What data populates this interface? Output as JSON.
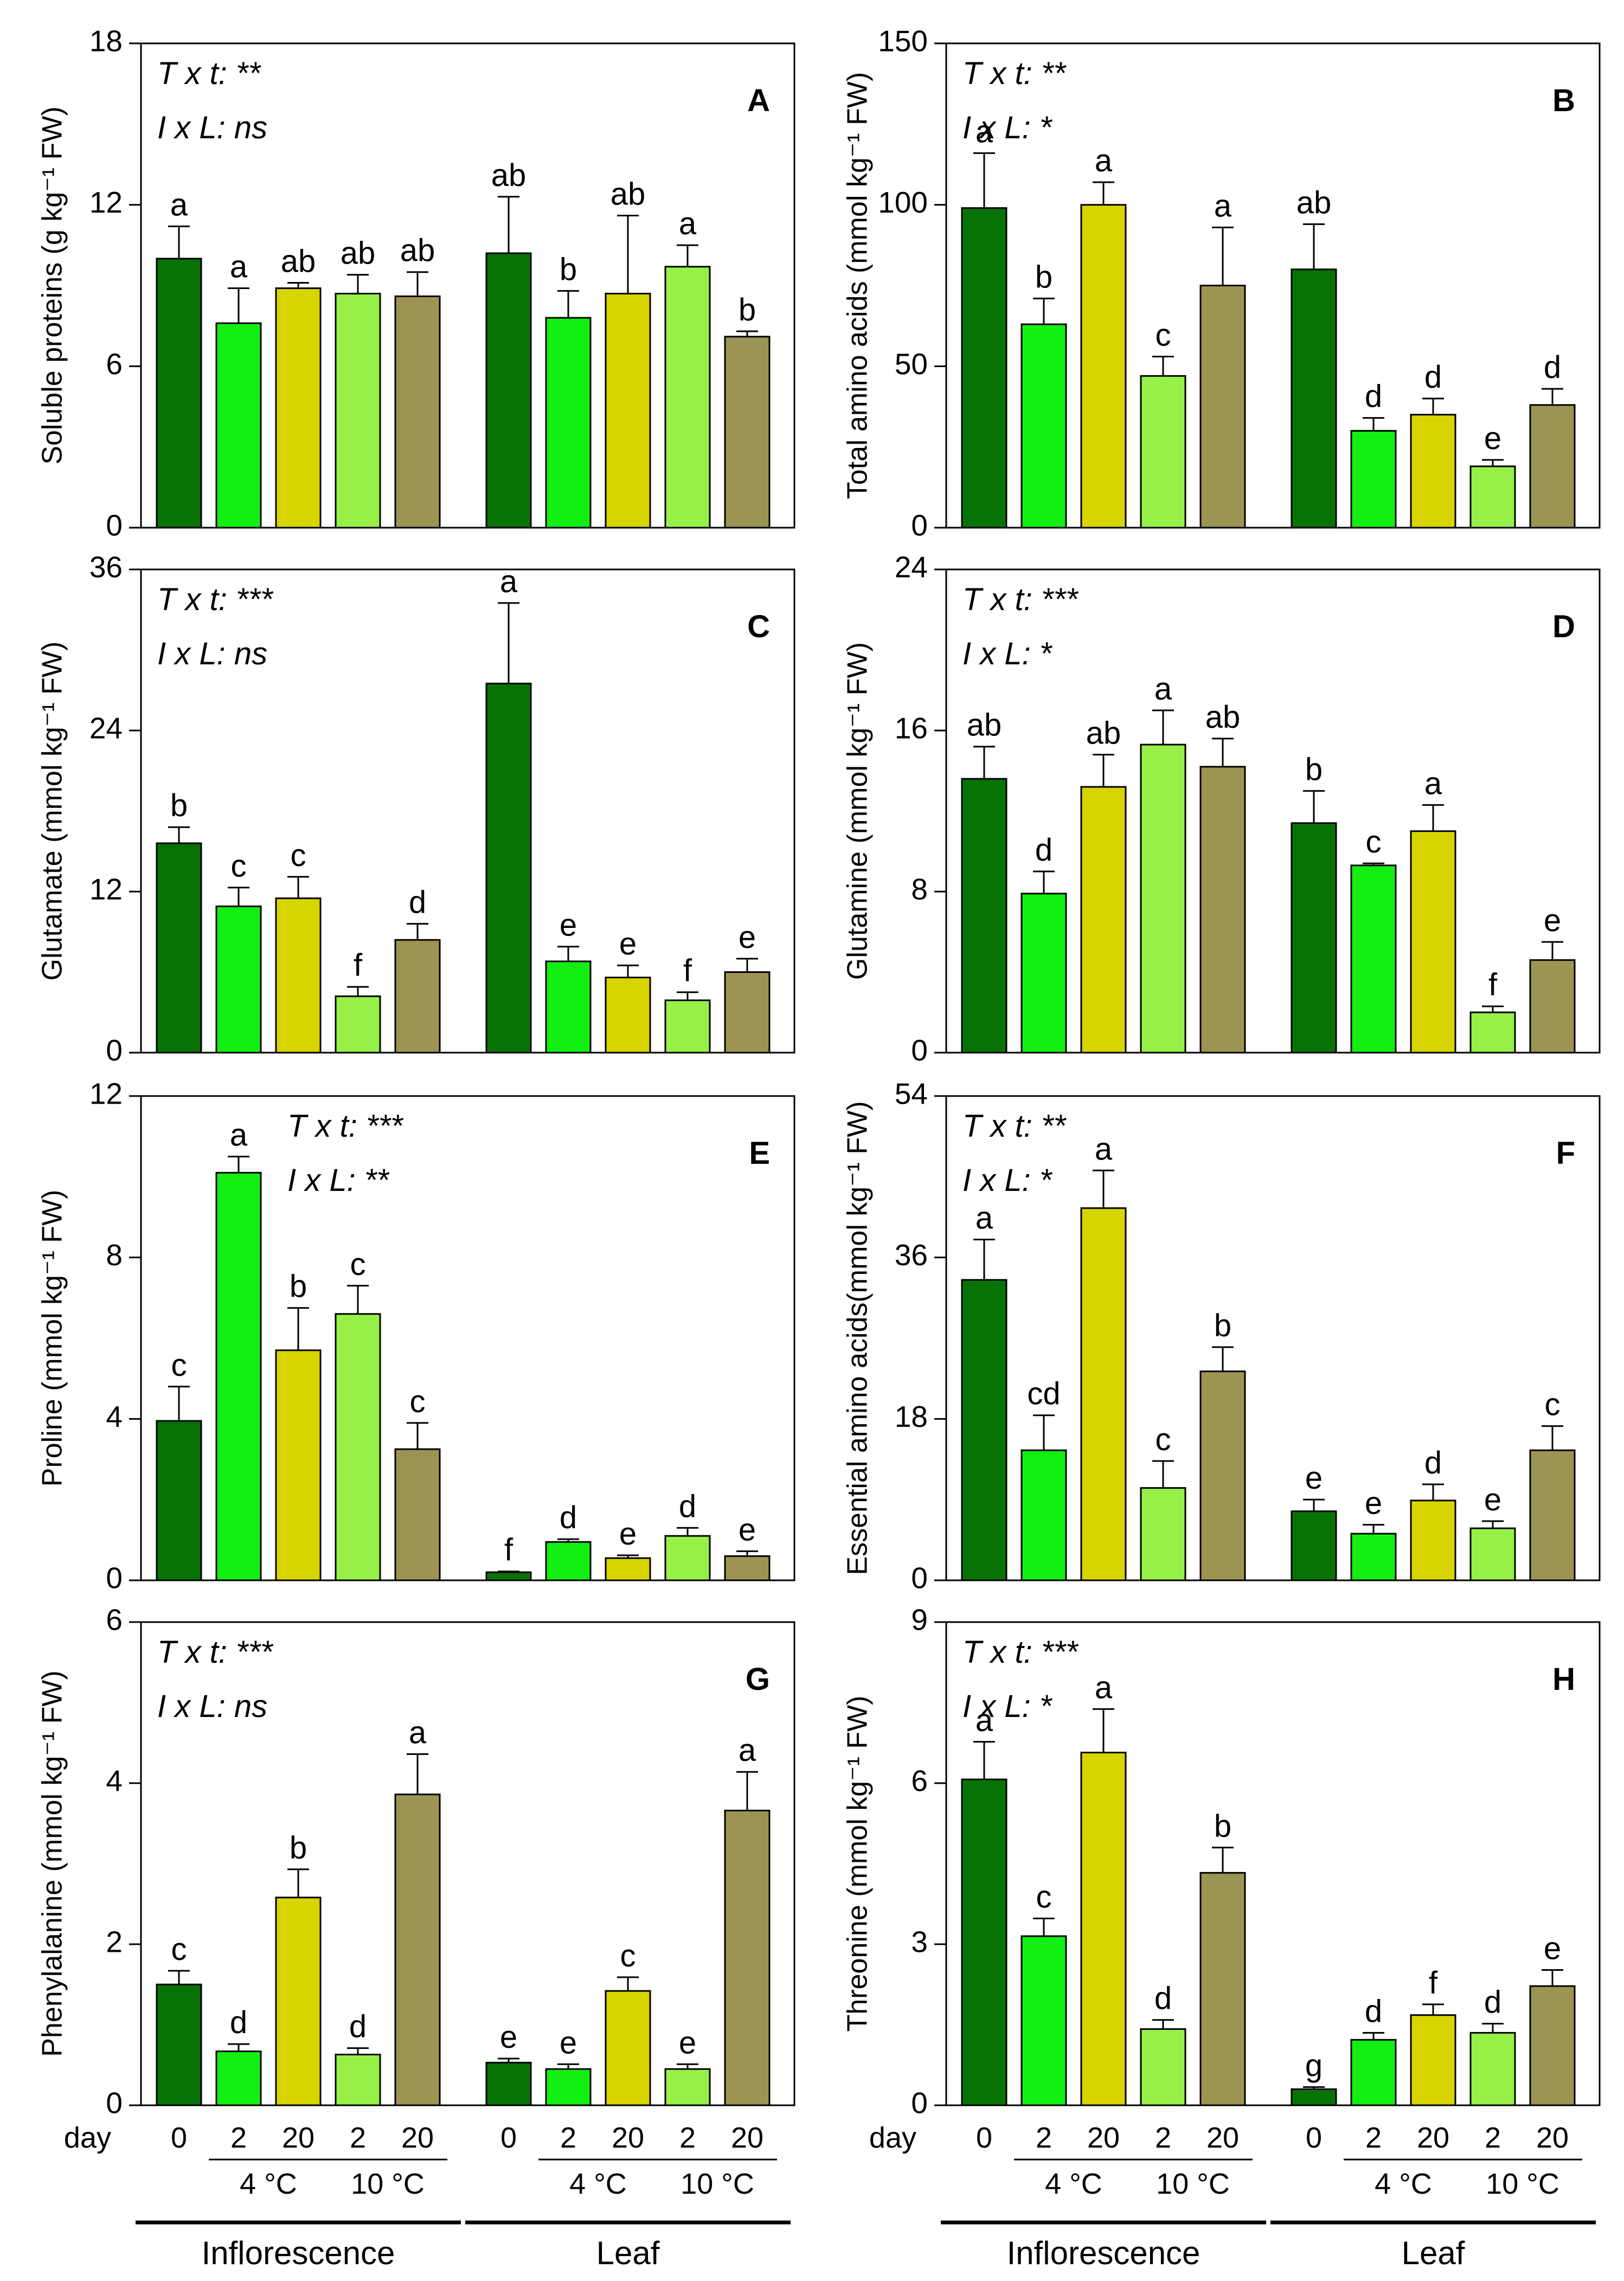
{
  "colors": [
    "#077307",
    "#13ee13",
    "#d8d400",
    "#96f048",
    "#9c9452"
  ],
  "x_axis": {
    "day_label": "day",
    "days": [
      "0",
      "2",
      "20",
      "2",
      "20"
    ],
    "temps": [
      "4 °C",
      "10 °C"
    ],
    "groups": [
      "Inflorescence",
      "Leaf"
    ]
  },
  "chart_data": [
    {
      "type": "bar",
      "panel": "A",
      "ylabel": "Soluble proteins (g kg⁻¹ FW)",
      "ylim": [
        0,
        18
      ],
      "yticks": [
        "0",
        "6",
        "12",
        "18"
      ],
      "stats": [
        "T x t: **",
        "I x L: ns"
      ],
      "groups": [
        {
          "name": "Inflorescence",
          "values": [
            10.0,
            7.6,
            8.9,
            8.7,
            8.6
          ],
          "errors": [
            1.2,
            1.3,
            0.2,
            0.7,
            0.9
          ],
          "letters": [
            "a",
            "a",
            "ab",
            "ab",
            "ab"
          ]
        },
        {
          "name": "Leaf",
          "values": [
            10.2,
            7.8,
            8.7,
            9.7,
            7.1
          ],
          "errors": [
            2.1,
            1.0,
            2.9,
            0.8,
            0.2
          ],
          "letters": [
            "ab",
            "b",
            "ab",
            "a",
            "b"
          ]
        }
      ]
    },
    {
      "type": "bar",
      "panel": "B",
      "ylabel": "Total amino acids (mmol kg⁻¹ FW)",
      "ylim": [
        0,
        150
      ],
      "yticks": [
        "0",
        "50",
        "100",
        "150"
      ],
      "stats": [
        "T x t: **",
        "I x L: *"
      ],
      "groups": [
        {
          "name": "Inflorescence",
          "values": [
            99,
            63,
            100,
            47,
            75
          ],
          "errors": [
            17,
            8,
            7,
            6,
            18
          ],
          "letters": [
            "a",
            "b",
            "a",
            "c",
            "a"
          ]
        },
        {
          "name": "Leaf",
          "values": [
            80,
            30,
            35,
            19,
            38
          ],
          "errors": [
            14,
            4,
            5,
            2,
            5
          ],
          "letters": [
            "ab",
            "d",
            "d",
            "e",
            "d"
          ]
        }
      ]
    },
    {
      "type": "bar",
      "panel": "C",
      "ylabel": "Glutamate (mmol kg⁻¹ FW)",
      "ylim": [
        0,
        36
      ],
      "yticks": [
        "0",
        "12",
        "24",
        "36"
      ],
      "stats": [
        "T x t: ***",
        "I x L: ns"
      ],
      "groups": [
        {
          "name": "Inflorescence",
          "values": [
            15.6,
            10.9,
            11.5,
            4.2,
            8.4
          ],
          "errors": [
            1.2,
            1.4,
            1.6,
            0.7,
            1.2
          ],
          "letters": [
            "b",
            "c",
            "c",
            "f",
            "d"
          ]
        },
        {
          "name": "Leaf",
          "values": [
            27.5,
            6.8,
            5.6,
            3.9,
            6.0
          ],
          "errors": [
            6.0,
            1.1,
            0.9,
            0.6,
            1.0
          ],
          "letters": [
            "a",
            "e",
            "e",
            "f",
            "e"
          ]
        }
      ]
    },
    {
      "type": "bar",
      "panel": "D",
      "ylabel": "Glutamine (mmol kg⁻¹ FW)",
      "ylim": [
        0,
        24
      ],
      "yticks": [
        "0",
        "8",
        "16",
        "24"
      ],
      "stats": [
        "T x t: ***",
        "I x L: *"
      ],
      "groups": [
        {
          "name": "Inflorescence",
          "values": [
            13.6,
            7.9,
            13.2,
            15.3,
            14.2
          ],
          "errors": [
            1.6,
            1.1,
            1.6,
            1.7,
            1.4
          ],
          "letters": [
            "ab",
            "d",
            "ab",
            "a",
            "ab"
          ]
        },
        {
          "name": "Leaf",
          "values": [
            11.4,
            9.3,
            11.0,
            2.0,
            4.6
          ],
          "errors": [
            1.6,
            0.1,
            1.3,
            0.3,
            0.9
          ],
          "letters": [
            "b",
            "c",
            "a",
            "f",
            "e"
          ]
        }
      ]
    },
    {
      "type": "bar",
      "panel": "E",
      "ylabel": "Proline (mmol kg⁻¹ FW)",
      "ylim": [
        0,
        12
      ],
      "yticks": [
        "0",
        "4",
        "8",
        "12"
      ],
      "stats": [
        "T x t: ***",
        "I x L: **"
      ],
      "groups": [
        {
          "name": "Inflorescence",
          "values": [
            3.95,
            10.1,
            5.7,
            6.6,
            3.25
          ],
          "errors": [
            0.85,
            0.4,
            1.05,
            0.7,
            0.65
          ],
          "letters": [
            "c",
            "a",
            "b",
            "c",
            "c"
          ]
        },
        {
          "name": "Leaf",
          "values": [
            0.2,
            0.95,
            0.55,
            1.1,
            0.6
          ],
          "errors": [
            0.02,
            0.07,
            0.07,
            0.2,
            0.12
          ],
          "letters": [
            "f",
            "d",
            "e",
            "d",
            "e"
          ]
        }
      ]
    },
    {
      "type": "bar",
      "panel": "F",
      "ylabel": "Essential amino acids(mmol kg⁻¹ FW)",
      "ylim": [
        0,
        54
      ],
      "yticks": [
        "0",
        "18",
        "36",
        "54"
      ],
      "stats": [
        "T x t: **",
        "I x L: *"
      ],
      "groups": [
        {
          "name": "Inflorescence",
          "values": [
            33.5,
            14.5,
            41.5,
            10.3,
            23.3
          ],
          "errors": [
            4.5,
            3.9,
            4.2,
            3.0,
            2.7
          ],
          "letters": [
            "a",
            "cd",
            "a",
            "c",
            "b"
          ]
        },
        {
          "name": "Leaf",
          "values": [
            7.7,
            5.2,
            8.9,
            5.8,
            14.5
          ],
          "errors": [
            1.3,
            1.0,
            1.8,
            0.8,
            2.7
          ],
          "letters": [
            "e",
            "e",
            "d",
            "e",
            "c"
          ]
        }
      ]
    },
    {
      "type": "bar",
      "panel": "G",
      "ylabel": "Phenylalanine (mmol kg⁻¹ FW)",
      "ylim": [
        0,
        6
      ],
      "yticks": [
        "0",
        "2",
        "4",
        "6"
      ],
      "stats": [
        "T x t: ***",
        "I x L: ns"
      ],
      "groups": [
        {
          "name": "Inflorescence",
          "values": [
            1.5,
            0.67,
            2.58,
            0.63,
            3.86
          ],
          "errors": [
            0.17,
            0.09,
            0.35,
            0.08,
            0.5
          ],
          "letters": [
            "c",
            "d",
            "b",
            "d",
            "a"
          ]
        },
        {
          "name": "Leaf",
          "values": [
            0.53,
            0.45,
            1.42,
            0.45,
            3.66
          ],
          "errors": [
            0.05,
            0.06,
            0.17,
            0.06,
            0.48
          ],
          "letters": [
            "e",
            "e",
            "c",
            "e",
            "a"
          ]
        }
      ]
    },
    {
      "type": "bar",
      "panel": "H",
      "ylabel": "Threonine (mmol kg⁻¹ FW)",
      "ylim": [
        0,
        9
      ],
      "yticks": [
        "0",
        "3",
        "6",
        "9"
      ],
      "stats": [
        "T x t: ***",
        "I x L: *"
      ],
      "groups": [
        {
          "name": "Inflorescence",
          "values": [
            6.07,
            3.15,
            6.57,
            1.42,
            4.33
          ],
          "errors": [
            0.7,
            0.33,
            0.81,
            0.17,
            0.47
          ],
          "letters": [
            "a",
            "c",
            "a",
            "d",
            "b"
          ]
        },
        {
          "name": "Leaf",
          "values": [
            0.3,
            1.22,
            1.68,
            1.35,
            2.22
          ],
          "errors": [
            0.04,
            0.13,
            0.2,
            0.17,
            0.3
          ],
          "letters": [
            "g",
            "d",
            "f",
            "d",
            "e"
          ]
        }
      ]
    }
  ]
}
